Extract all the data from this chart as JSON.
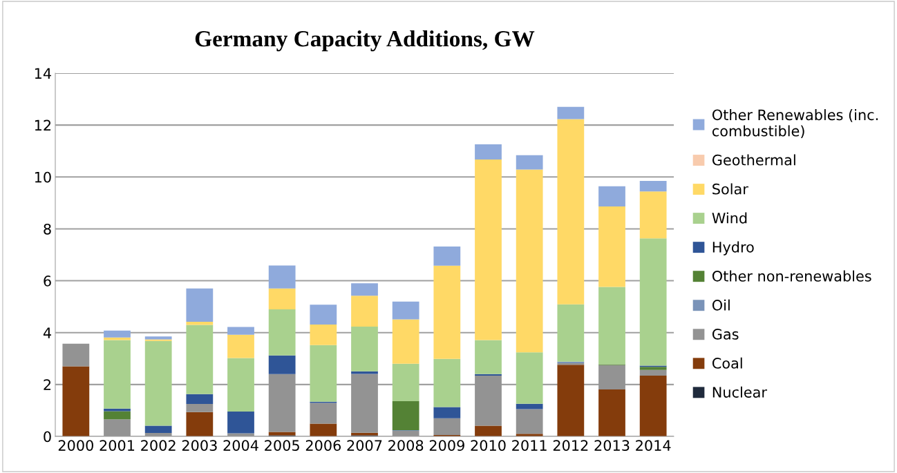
{
  "chart_data": {
    "type": "bar",
    "title": "Germany Capacity Additions, GW",
    "stacked": true,
    "categories": [
      "2000",
      "2001",
      "2002",
      "2003",
      "2004",
      "2005",
      "2006",
      "2007",
      "2008",
      "2009",
      "2010",
      "2011",
      "2012",
      "2013",
      "2014"
    ],
    "series": [
      {
        "name": "Nuclear",
        "color": "#1f2a3c",
        "values": [
          0,
          0,
          0,
          0,
          0,
          0.04,
          0,
          0.04,
          0,
          0,
          0,
          0,
          0,
          0,
          0
        ]
      },
      {
        "name": "Coal",
        "color": "#843c0c",
        "values": [
          2.7,
          0,
          0,
          0.94,
          0,
          0.13,
          0.49,
          0.1,
          0,
          0.05,
          0.41,
          0.1,
          2.76,
          1.81,
          2.34
        ]
      },
      {
        "name": "Gas",
        "color": "#939393",
        "values": [
          0.87,
          0.66,
          0.13,
          0.31,
          0.12,
          2.23,
          0.8,
          2.27,
          0.21,
          0.65,
          1.93,
          0.95,
          0.06,
          0.94,
          0.22
        ]
      },
      {
        "name": "Oil",
        "color": "#7a93b8",
        "values": [
          0,
          0,
          0,
          0,
          0,
          0,
          0,
          0,
          0.03,
          0,
          0,
          0,
          0.06,
          0,
          0
        ]
      },
      {
        "name": "Other non-renewables",
        "color": "#548235",
        "values": [
          0,
          0.31,
          0,
          0,
          0,
          0,
          0,
          0,
          1.12,
          0,
          0,
          0,
          0,
          0.03,
          0.12
        ]
      },
      {
        "name": "Hydro",
        "color": "#2f5597",
        "values": [
          0,
          0.1,
          0.28,
          0.38,
          0.84,
          0.72,
          0.05,
          0.1,
          0,
          0.43,
          0.06,
          0.21,
          0,
          0,
          0.05
        ]
      },
      {
        "name": "Wind",
        "color": "#a9d18e",
        "values": [
          0,
          2.64,
          3.27,
          2.67,
          2.06,
          1.78,
          2.18,
          1.72,
          1.44,
          1.86,
          1.31,
          1.98,
          2.21,
          2.98,
          4.9
        ]
      },
      {
        "name": "Solar",
        "color": "#ffd966",
        "values": [
          0,
          0.1,
          0.06,
          0.12,
          0.9,
          0.8,
          0.79,
          1.19,
          1.71,
          3.59,
          6.96,
          7.05,
          7.14,
          3.1,
          1.81
        ]
      },
      {
        "name": "Geothermal",
        "color": "#f8cbad",
        "values": [
          0,
          0,
          0,
          0,
          0,
          0,
          0,
          0,
          0,
          0,
          0,
          0,
          0,
          0,
          0
        ]
      },
      {
        "name": "Other Renewables (inc.\ncombustible)",
        "color": "#8faadc",
        "values": [
          0,
          0.27,
          0.11,
          1.28,
          0.3,
          0.89,
          0.77,
          0.48,
          0.69,
          0.74,
          0.59,
          0.55,
          0.47,
          0.78,
          0.41
        ]
      }
    ],
    "ylim": [
      0,
      14
    ],
    "yticks": [
      0,
      2,
      4,
      6,
      8,
      10,
      12,
      14
    ],
    "grid": "y",
    "legend": "right"
  }
}
